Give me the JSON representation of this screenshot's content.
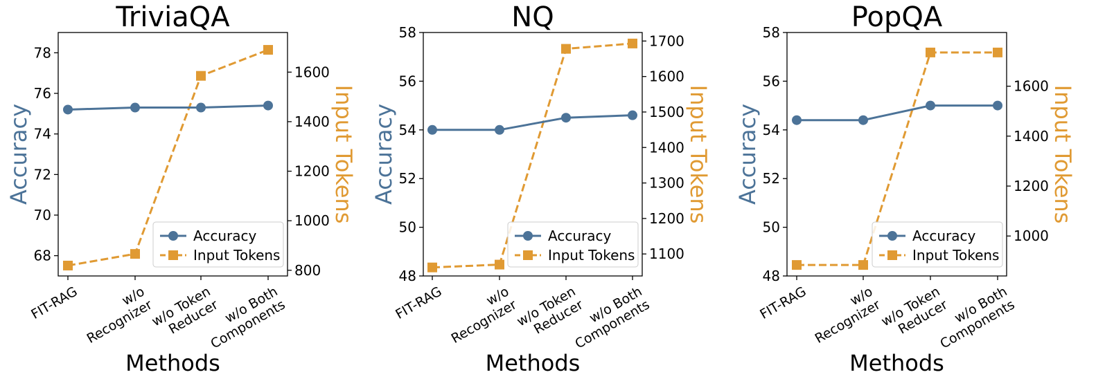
{
  "colors": {
    "accuracy": "#4c7398",
    "tokens": "#e09a33"
  },
  "chart_data": [
    {
      "type": "line",
      "title": "TriviaQA",
      "xlabel": "Methods",
      "ylabel": "Accuracy",
      "y2label": "Input Tokens",
      "categories": [
        [
          "FIT-RAG"
        ],
        [
          "w/o",
          "Recognizer"
        ],
        [
          "w/o Token",
          "Reducer"
        ],
        [
          "w/o Both",
          "Components"
        ]
      ],
      "ylim": [
        67,
        79
      ],
      "yticks": [
        68,
        70,
        72,
        74,
        76,
        78
      ],
      "y2lim": [
        777,
        1760
      ],
      "y2ticks": [
        800,
        1000,
        1200,
        1400,
        1600
      ],
      "series": [
        {
          "name": "Accuracy",
          "axis": "left",
          "values": [
            75.2,
            75.3,
            75.3,
            75.4
          ]
        },
        {
          "name": "Input Tokens",
          "axis": "right",
          "values": [
            819,
            866,
            1585,
            1690
          ]
        }
      ],
      "legend": "lower right"
    },
    {
      "type": "line",
      "title": "NQ",
      "xlabel": "Methods",
      "ylabel": "Accuracy",
      "y2label": "Input Tokens",
      "categories": [
        [
          "FIT-RAG"
        ],
        [
          "w/o",
          "Recognizer"
        ],
        [
          "w/o Token",
          "Reducer"
        ],
        [
          "w/o Both",
          "Components"
        ]
      ],
      "ylim": [
        48,
        58
      ],
      "yticks": [
        48,
        50,
        52,
        54,
        56,
        58
      ],
      "y2lim": [
        1038,
        1724
      ],
      "y2ticks": [
        1100,
        1200,
        1300,
        1400,
        1500,
        1600,
        1700
      ],
      "series": [
        {
          "name": "Accuracy",
          "axis": "left",
          "values": [
            54.0,
            54.0,
            54.5,
            54.6
          ]
        },
        {
          "name": "Input Tokens",
          "axis": "right",
          "values": [
            1062,
            1070,
            1678,
            1693
          ]
        }
      ],
      "legend": "lower right"
    },
    {
      "type": "line",
      "title": "PopQA",
      "xlabel": "Methods",
      "ylabel": "Accuracy",
      "y2label": "Input Tokens",
      "categories": [
        [
          "FIT-RAG"
        ],
        [
          "w/o",
          "Recognizer"
        ],
        [
          "w/o Token",
          "Reducer"
        ],
        [
          "w/o Both",
          "Components"
        ]
      ],
      "ylim": [
        48,
        58
      ],
      "yticks": [
        48,
        50,
        52,
        54,
        56,
        58
      ],
      "y2lim": [
        840,
        1815
      ],
      "y2ticks": [
        1000,
        1200,
        1400,
        1600
      ],
      "series": [
        {
          "name": "Accuracy",
          "axis": "left",
          "values": [
            54.4,
            54.4,
            55.0,
            55.0
          ]
        },
        {
          "name": "Input Tokens",
          "axis": "right",
          "values": [
            884,
            884,
            1735,
            1735
          ]
        }
      ],
      "legend": "lower right"
    }
  ]
}
